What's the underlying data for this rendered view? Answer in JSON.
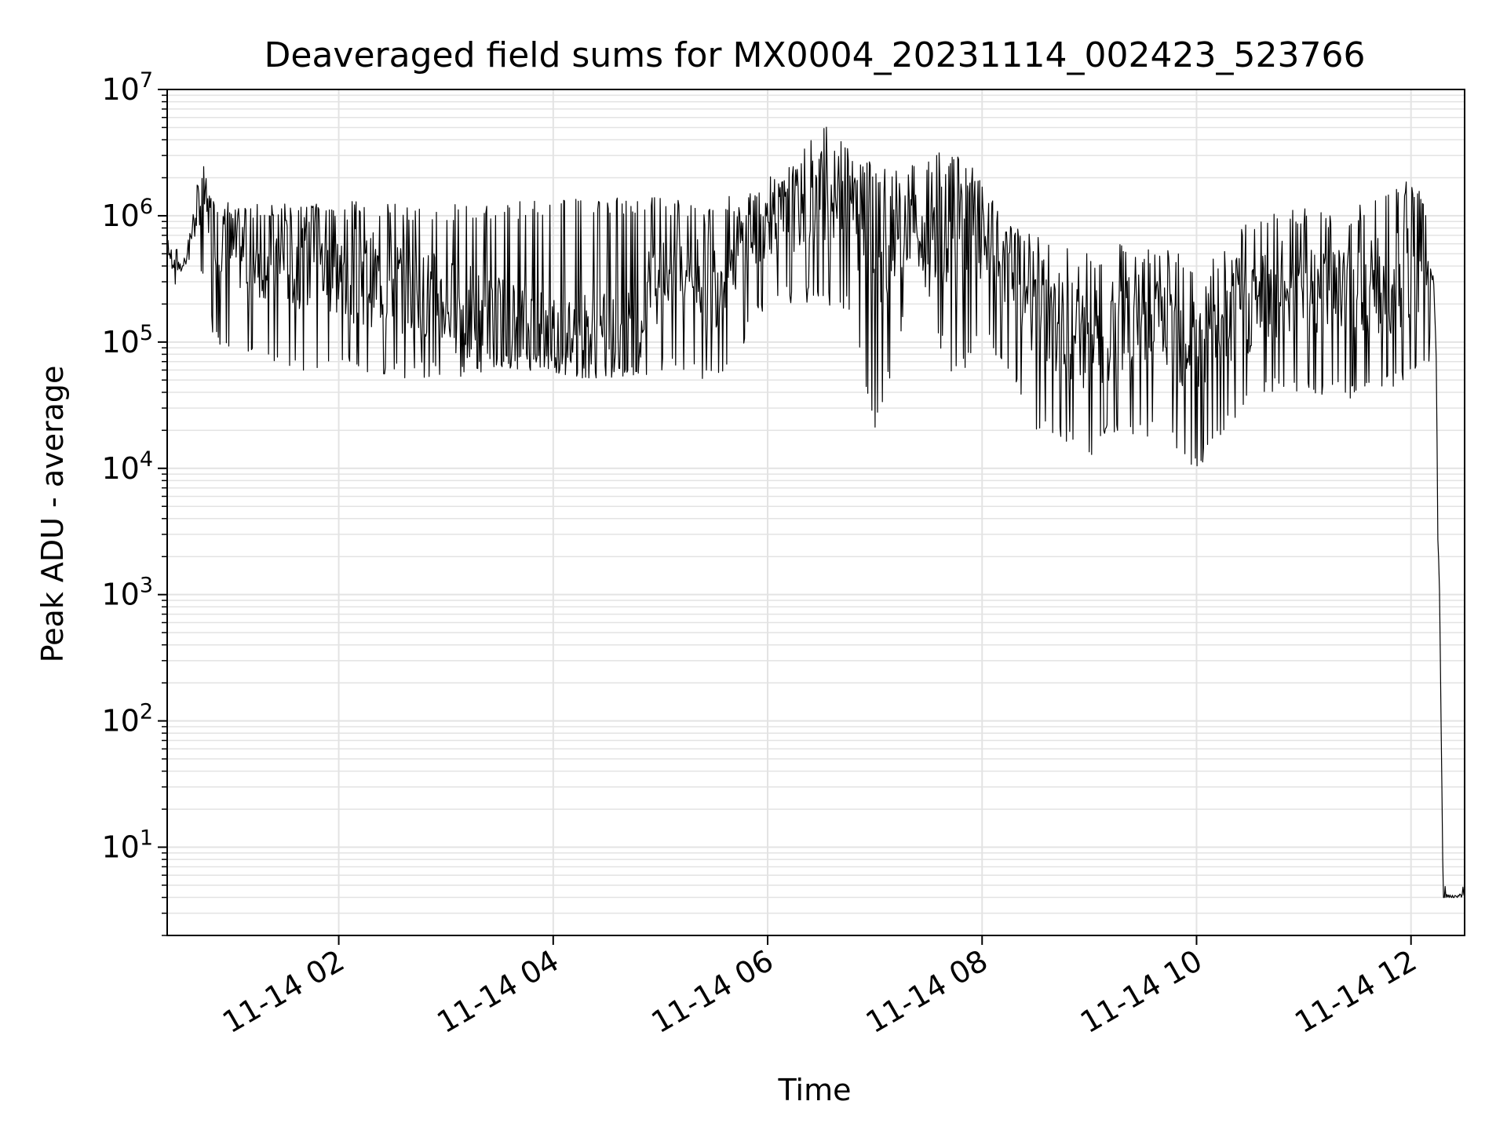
{
  "chart_data": {
    "type": "line",
    "title": "Deaveraged field sums for MX0004_20231114_002423_523766",
    "xlabel": "Time",
    "ylabel": "Peak ADU - average",
    "x_range": [
      "2023-11-14 00:24",
      "2023-11-14 12:30"
    ],
    "x_ticks": [
      "11-14 02",
      "11-14 04",
      "11-14 06",
      "11-14 08",
      "11-14 10",
      "11-14 12"
    ],
    "y_scale": "log",
    "ylim": [
      2,
      10000000
    ],
    "y_ticks": [
      {
        "base": "10",
        "exp": "1"
      },
      {
        "base": "10",
        "exp": "2"
      },
      {
        "base": "10",
        "exp": "3"
      },
      {
        "base": "10",
        "exp": "4"
      },
      {
        "base": "10",
        "exp": "5"
      },
      {
        "base": "10",
        "exp": "6"
      },
      {
        "base": "10",
        "exp": "7"
      }
    ],
    "grid": true,
    "line_color": "#000000",
    "series": [
      {
        "x": [
          "00:24",
          "00:28",
          "00:32",
          "00:36",
          "00:40",
          "00:44",
          "00:48",
          "00:52",
          "00:56",
          "01:00",
          "01:10",
          "01:20",
          "01:30",
          "01:40",
          "01:50",
          "02:00",
          "02:15",
          "02:30",
          "02:45",
          "03:00",
          "03:15",
          "03:30",
          "03:45",
          "04:00",
          "04:15",
          "04:30",
          "04:45",
          "05:00",
          "05:15",
          "05:30",
          "05:45",
          "06:00",
          "06:15",
          "06:30",
          "06:45",
          "07:00",
          "07:15",
          "07:30",
          "07:45",
          "08:00",
          "08:15",
          "08:30",
          "08:45",
          "09:00",
          "09:15",
          "09:30",
          "09:45",
          "10:00",
          "10:15",
          "10:30",
          "10:45",
          "11:00",
          "11:15",
          "11:30",
          "11:45",
          "12:00",
          "12:10",
          "12:14",
          "12:15",
          "12:16",
          "12:18",
          "12:20",
          "12:30"
        ],
        "y": [
          500000,
          450000,
          400000,
          500000,
          1200000,
          1500000,
          900000,
          700000,
          600000,
          550000,
          500000,
          480000,
          450000,
          420000,
          400000,
          350000,
          320000,
          300000,
          250000,
          200000,
          170000,
          150000,
          130000,
          120000,
          110000,
          100000,
          110000,
          400000,
          450000,
          300000,
          600000,
          900000,
          1100000,
          1500000,
          1300000,
          600000,
          900000,
          500000,
          1000000,
          700000,
          400000,
          200000,
          130000,
          100000,
          120000,
          150000,
          130000,
          100000,
          160000,
          200000,
          250000,
          300000,
          280000,
          300000,
          250000,
          300000,
          250000,
          150000,
          3000,
          1000,
          4,
          4,
          4
        ],
        "upper": [
          700000,
          650000,
          600000,
          700000,
          1900000,
          3000000,
          1400000,
          1200000,
          1300000,
          1300000,
          1300000,
          1300000,
          1300000,
          1300000,
          1300000,
          1300000,
          1300000,
          1300000,
          1200000,
          1200000,
          1300000,
          1300000,
          1300000,
          1400000,
          1400000,
          1400000,
          1400000,
          1400000,
          1400000,
          1400000,
          1500000,
          2000000,
          3000000,
          5500000,
          3500000,
          2500000,
          2500000,
          3000000,
          3500000,
          2500000,
          900000,
          700000,
          600000,
          500000,
          600000,
          550000,
          600000,
          400000,
          700000,
          1000000,
          1100000,
          1200000,
          1000000,
          1200000,
          1500000,
          2000000,
          1200000,
          150000,
          5500,
          1000,
          5,
          5,
          5
        ],
        "lower": [
          300000,
          280000,
          300000,
          350000,
          700000,
          250000,
          130000,
          100000,
          90000,
          80000,
          70000,
          65000,
          60000,
          60000,
          55000,
          55000,
          55000,
          52000,
          50000,
          50000,
          55000,
          55000,
          60000,
          58000,
          52000,
          52000,
          55000,
          55000,
          50000,
          48000,
          90000,
          200000,
          200000,
          200000,
          180000,
          18000,
          120000,
          150000,
          48000,
          100000,
          50000,
          20000,
          16000,
          10000,
          20000,
          18000,
          16000,
          9000,
          18000,
          30000,
          40000,
          40000,
          35000,
          35000,
          40000,
          45000,
          60000,
          30000,
          2800,
          1000,
          4,
          4,
          4
        ]
      }
    ]
  }
}
